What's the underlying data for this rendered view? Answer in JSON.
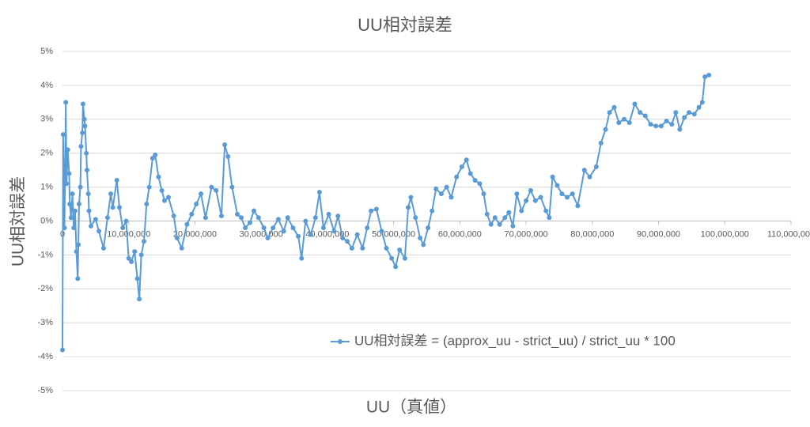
{
  "chart_data": {
    "type": "line",
    "title": "UU相対誤差",
    "x_label": "UU（真値）",
    "y_label": "UU相対誤差",
    "xlim": [
      0,
      110000000
    ],
    "xticks": [
      {
        "value": 0,
        "label": "0"
      },
      {
        "value": 10000000,
        "label": "10,000,000"
      },
      {
        "value": 20000000,
        "label": "20,000,000"
      },
      {
        "value": 30000000,
        "label": "30,000,000"
      },
      {
        "value": 40000000,
        "label": "40,000,000"
      },
      {
        "value": 50000000,
        "label": "50,000,000"
      },
      {
        "value": 60000000,
        "label": "60,000,000"
      },
      {
        "value": 70000000,
        "label": "70,000,000"
      },
      {
        "value": 80000000,
        "label": "80,000,000"
      },
      {
        "value": 90000000,
        "label": "90,000,000"
      },
      {
        "value": 100000000,
        "label": "100,000,000"
      },
      {
        "value": 110000000,
        "label": "110,000,000"
      }
    ],
    "ylim": [
      -5,
      5
    ],
    "yticks": [
      {
        "value": -5,
        "label": "-5%"
      },
      {
        "value": -4,
        "label": "-4%"
      },
      {
        "value": -3,
        "label": "-3%"
      },
      {
        "value": -2,
        "label": "-2%"
      },
      {
        "value": -1,
        "label": "-1%"
      },
      {
        "value": 0,
        "label": "0%"
      },
      {
        "value": 1,
        "label": "1%"
      },
      {
        "value": 2,
        "label": "2%"
      },
      {
        "value": 3,
        "label": "3%"
      },
      {
        "value": 4,
        "label": "4%"
      },
      {
        "value": 5,
        "label": "5%"
      }
    ],
    "grid": true,
    "legend": "bottom-right",
    "x": [
      0,
      100000,
      300000,
      500000,
      600000,
      800000,
      1000000,
      1100000,
      1300000,
      1500000,
      1700000,
      1900000,
      2100000,
      2300000,
      2400000,
      2500000,
      2700000,
      2800000,
      3000000,
      3100000,
      3300000,
      3400000,
      3600000,
      3700000,
      3900000,
      4000000,
      4300000,
      5000000,
      5500000,
      6200000,
      6800000,
      7300000,
      7600000,
      8200000,
      8600000,
      9100000,
      9600000,
      10000000,
      10400000,
      10900000,
      11300000,
      11600000,
      11900000,
      12300000,
      12700000,
      13100000,
      13600000,
      14000000,
      14500000,
      15000000,
      15400000,
      16000000,
      16800000,
      17300000,
      18000000,
      18800000,
      19500000,
      20200000,
      20900000,
      21600000,
      22500000,
      23200000,
      24000000,
      24500000,
      25000000,
      25600000,
      26400000,
      27000000,
      27600000,
      28300000,
      28900000,
      29600000,
      30400000,
      31000000,
      31800000,
      32600000,
      33400000,
      34000000,
      34800000,
      35600000,
      36100000,
      36700000,
      37500000,
      38200000,
      38800000,
      39400000,
      40200000,
      41000000,
      41600000,
      42300000,
      43000000,
      43700000,
      44500000,
      45300000,
      46000000,
      46600000,
      47400000,
      48200000,
      48900000,
      49700000,
      50300000,
      50900000,
      51700000,
      52200000,
      52600000,
      53300000,
      54000000,
      54500000,
      55200000,
      55800000,
      56400000,
      57200000,
      58000000,
      58700000,
      59500000,
      60300000,
      61000000,
      61600000,
      62300000,
      63000000,
      63600000,
      64100000,
      64700000,
      65300000,
      66000000,
      66800000,
      67400000,
      68000000,
      68600000,
      69300000,
      70000000,
      70700000,
      71400000,
      72200000,
      73000000,
      73500000,
      74000000,
      74700000,
      75400000,
      76200000,
      77000000,
      77800000,
      78800000,
      79600000,
      80600000,
      81300000,
      82000000,
      82600000,
      83300000,
      84000000,
      84800000,
      85600000,
      86400000,
      87200000,
      88000000,
      88800000,
      89600000,
      90400000,
      91200000,
      92000000,
      92600000,
      93200000,
      93900000,
      94600000,
      95400000,
      96100000,
      96600000,
      97000000,
      97600000
    ],
    "series": [
      {
        "name": "UU相対誤差 = (approx_uu - strict_uu) / strict_uu * 100",
        "color": "#5b9bd5",
        "values": [
          -3.8,
          2.55,
          -0.2,
          3.5,
          1.1,
          2.1,
          1.4,
          0.5,
          0.1,
          0.8,
          -0.2,
          0.3,
          -0.9,
          -1.7,
          -0.7,
          0.5,
          1.0,
          2.2,
          2.6,
          3.45,
          3.0,
          2.8,
          2.0,
          1.5,
          0.8,
          0.3,
          -0.15,
          0.05,
          -0.3,
          -0.8,
          0.1,
          0.8,
          0.4,
          1.2,
          0.4,
          -0.2,
          0.0,
          -1.1,
          -1.2,
          -0.9,
          -1.7,
          -2.3,
          -1.0,
          -0.6,
          0.5,
          1.0,
          1.85,
          1.95,
          1.3,
          0.9,
          0.6,
          0.7,
          0.15,
          -0.5,
          -0.8,
          -0.1,
          0.2,
          0.5,
          0.8,
          0.1,
          1.0,
          0.9,
          0.15,
          2.25,
          1.9,
          1.0,
          0.2,
          0.1,
          -0.2,
          -0.05,
          0.3,
          0.1,
          -0.2,
          -0.5,
          -0.2,
          0.05,
          -0.3,
          0.1,
          -0.2,
          -0.45,
          -1.1,
          0.0,
          -0.4,
          0.1,
          0.85,
          -0.2,
          0.2,
          -0.3,
          0.15,
          -0.5,
          -0.6,
          -0.8,
          -0.4,
          -0.8,
          -0.2,
          0.3,
          0.35,
          -0.3,
          -0.8,
          -1.1,
          -1.35,
          -0.85,
          -1.1,
          0.4,
          0.7,
          0.1,
          -0.5,
          -0.7,
          -0.2,
          0.3,
          0.95,
          0.8,
          1.0,
          0.7,
          1.3,
          1.6,
          1.8,
          1.4,
          1.2,
          1.1,
          0.8,
          0.2,
          -0.1,
          0.1,
          -0.1,
          0.1,
          0.25,
          -0.15,
          0.8,
          0.3,
          0.6,
          0.9,
          0.6,
          0.7,
          0.3,
          0.1,
          1.3,
          1.05,
          0.8,
          0.7,
          0.8,
          0.45,
          1.5,
          1.3,
          1.6,
          2.3,
          2.7,
          3.2,
          3.35,
          2.9,
          3.0,
          2.9,
          3.45,
          3.2,
          3.1,
          2.85,
          2.8,
          2.8,
          2.95,
          2.85,
          3.2,
          2.7,
          3.05,
          3.2,
          3.15,
          3.35,
          3.5,
          4.25,
          4.3
        ]
      }
    ]
  }
}
